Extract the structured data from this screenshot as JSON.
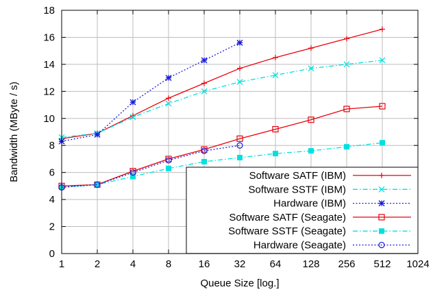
{
  "chart_data": {
    "type": "line",
    "title": "",
    "xlabel": "Queue Size [log.]",
    "ylabel": "Bandwidth (MByte / s)",
    "x_scale": "log2",
    "xlim": [
      1,
      1024
    ],
    "ylim": [
      0,
      18
    ],
    "x_ticks": [
      1,
      2,
      4,
      8,
      16,
      32,
      64,
      128,
      256,
      512,
      1024
    ],
    "y_ticks": [
      0,
      2,
      4,
      6,
      8,
      10,
      12,
      14,
      16,
      18
    ],
    "grid": true,
    "legend_position": "bottom-right",
    "series": [
      {
        "name": "Software SATF (IBM)",
        "color": "#e8000b",
        "dash": "solid",
        "marker": "plus",
        "x": [
          1,
          2,
          4,
          8,
          16,
          32,
          64,
          128,
          256,
          512
        ],
        "y": [
          8.5,
          8.9,
          10.2,
          11.5,
          12.6,
          13.7,
          14.5,
          15.2,
          15.9,
          16.6
        ]
      },
      {
        "name": "Software SSTF (IBM)",
        "color": "#00e0e0",
        "dash": "dashdot",
        "marker": "x",
        "x": [
          1,
          2,
          4,
          8,
          16,
          32,
          64,
          128,
          256,
          512
        ],
        "y": [
          8.6,
          8.9,
          10.1,
          11.1,
          12.0,
          12.7,
          13.2,
          13.7,
          14.0,
          14.3
        ]
      },
      {
        "name": "Hardware (IBM)",
        "color": "#1a1adb",
        "dash": "dotted",
        "marker": "star",
        "x": [
          1,
          2,
          4,
          8,
          16,
          32
        ],
        "y": [
          8.3,
          8.8,
          11.2,
          13.0,
          14.3,
          15.6
        ]
      },
      {
        "name": "Software SATF (Seagate)",
        "color": "#e8000b",
        "dash": "solid",
        "marker": "square-open",
        "x": [
          1,
          2,
          4,
          8,
          16,
          32,
          64,
          128,
          256,
          512
        ],
        "y": [
          5.0,
          5.1,
          6.1,
          7.0,
          7.7,
          8.5,
          9.2,
          9.9,
          10.7,
          10.9
        ]
      },
      {
        "name": "Software SSTF (Seagate)",
        "color": "#00e0e0",
        "dash": "dashdot",
        "marker": "square-filled",
        "x": [
          1,
          2,
          4,
          8,
          16,
          32,
          64,
          128,
          256,
          512
        ],
        "y": [
          4.9,
          5.1,
          5.7,
          6.3,
          6.8,
          7.1,
          7.4,
          7.6,
          7.9,
          8.2
        ]
      },
      {
        "name": "Hardware (Seagate)",
        "color": "#1a1adb",
        "dash": "dotted",
        "marker": "circle-open",
        "x": [
          1,
          2,
          4,
          8,
          16,
          32
        ],
        "y": [
          4.9,
          5.1,
          6.0,
          6.9,
          7.6,
          8.0
        ]
      }
    ]
  }
}
